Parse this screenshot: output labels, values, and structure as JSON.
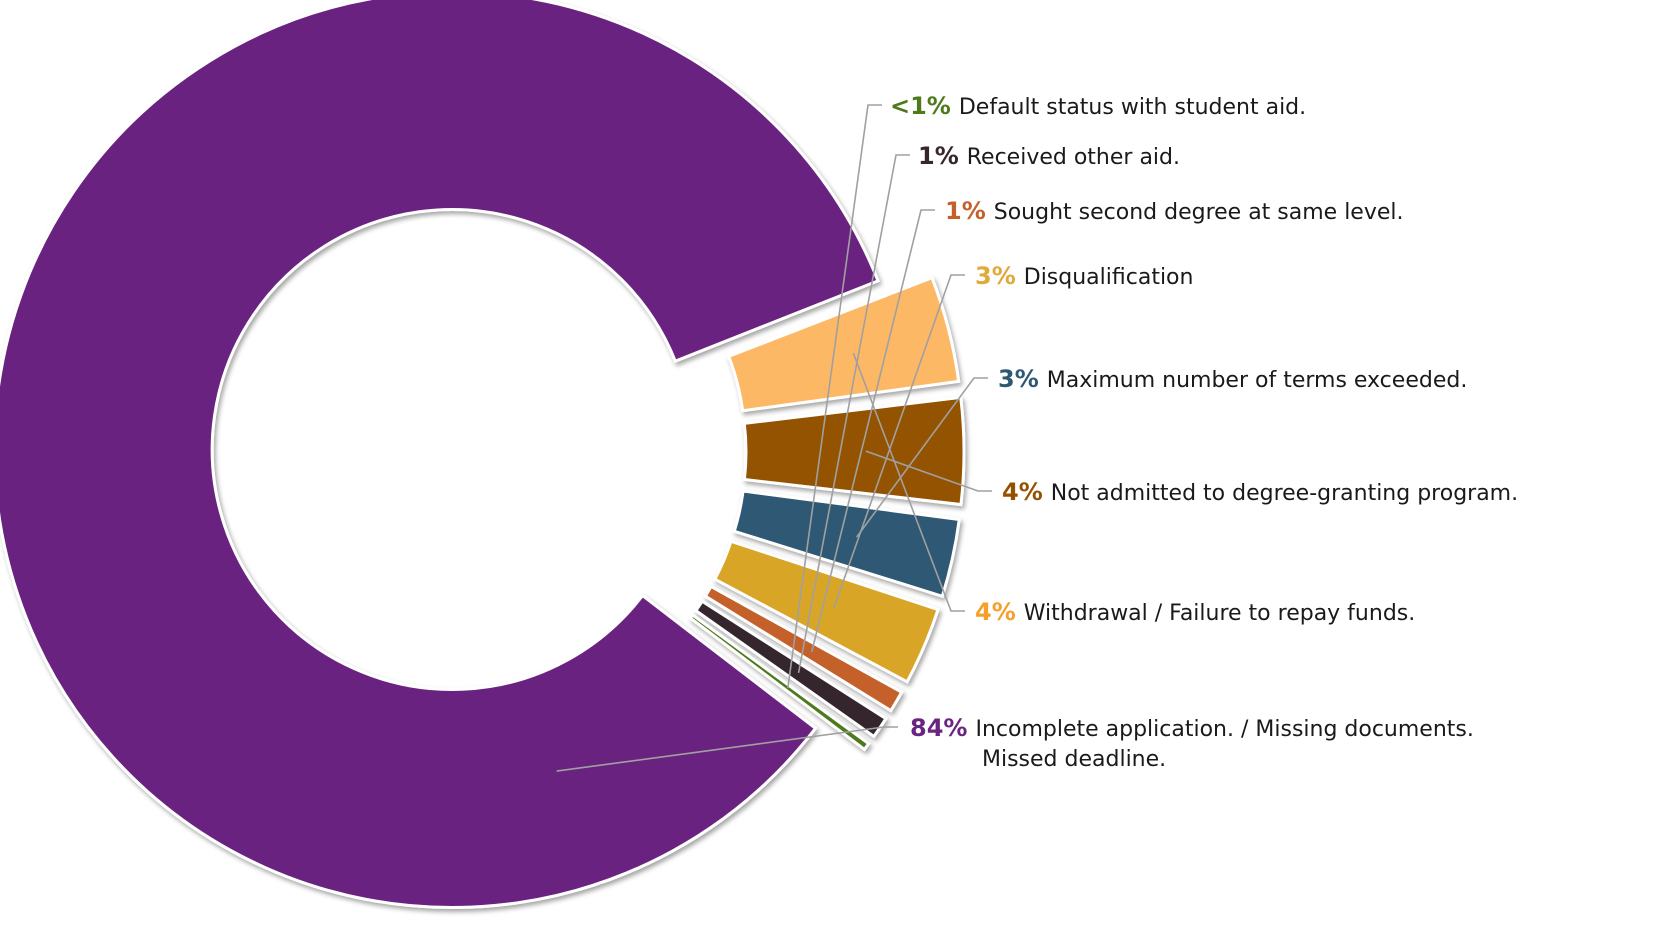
{
  "chart_data": {
    "type": "pie",
    "style": "donut-exploded",
    "title": "",
    "slices": [
      {
        "pct_label": "84%",
        "value": 84,
        "color": "#6b2480",
        "label_lines": [
          "Incomplete application. / Missing documents.",
          "Missed deadline."
        ]
      },
      {
        "pct_label": "4%",
        "value": 4,
        "color": "#fdb866",
        "label_lines": [
          "Withdrawal / Failure to repay funds."
        ]
      },
      {
        "pct_label": "4%",
        "value": 4,
        "color": "#945200",
        "label_lines": [
          "Not admitted to degree-granting program."
        ]
      },
      {
        "pct_label": "3%",
        "value": 3,
        "color": "#2e5873",
        "label_lines": [
          "Maximum number of terms exceeded."
        ]
      },
      {
        "pct_label": "3%",
        "value": 3,
        "color": "#d9a527",
        "label_lines": [
          "Disqualification"
        ]
      },
      {
        "pct_label": "1%",
        "value": 1,
        "color": "#c4602a",
        "label_lines": [
          "Sought second degree at same level."
        ]
      },
      {
        "pct_label": "1%",
        "value": 1,
        "color": "#36262e",
        "label_lines": [
          "Received other aid."
        ]
      },
      {
        "pct_label": "<1%",
        "value": 0.4,
        "color": "#4e7a1c",
        "label_lines": [
          "Default status with student aid."
        ]
      }
    ]
  }
}
